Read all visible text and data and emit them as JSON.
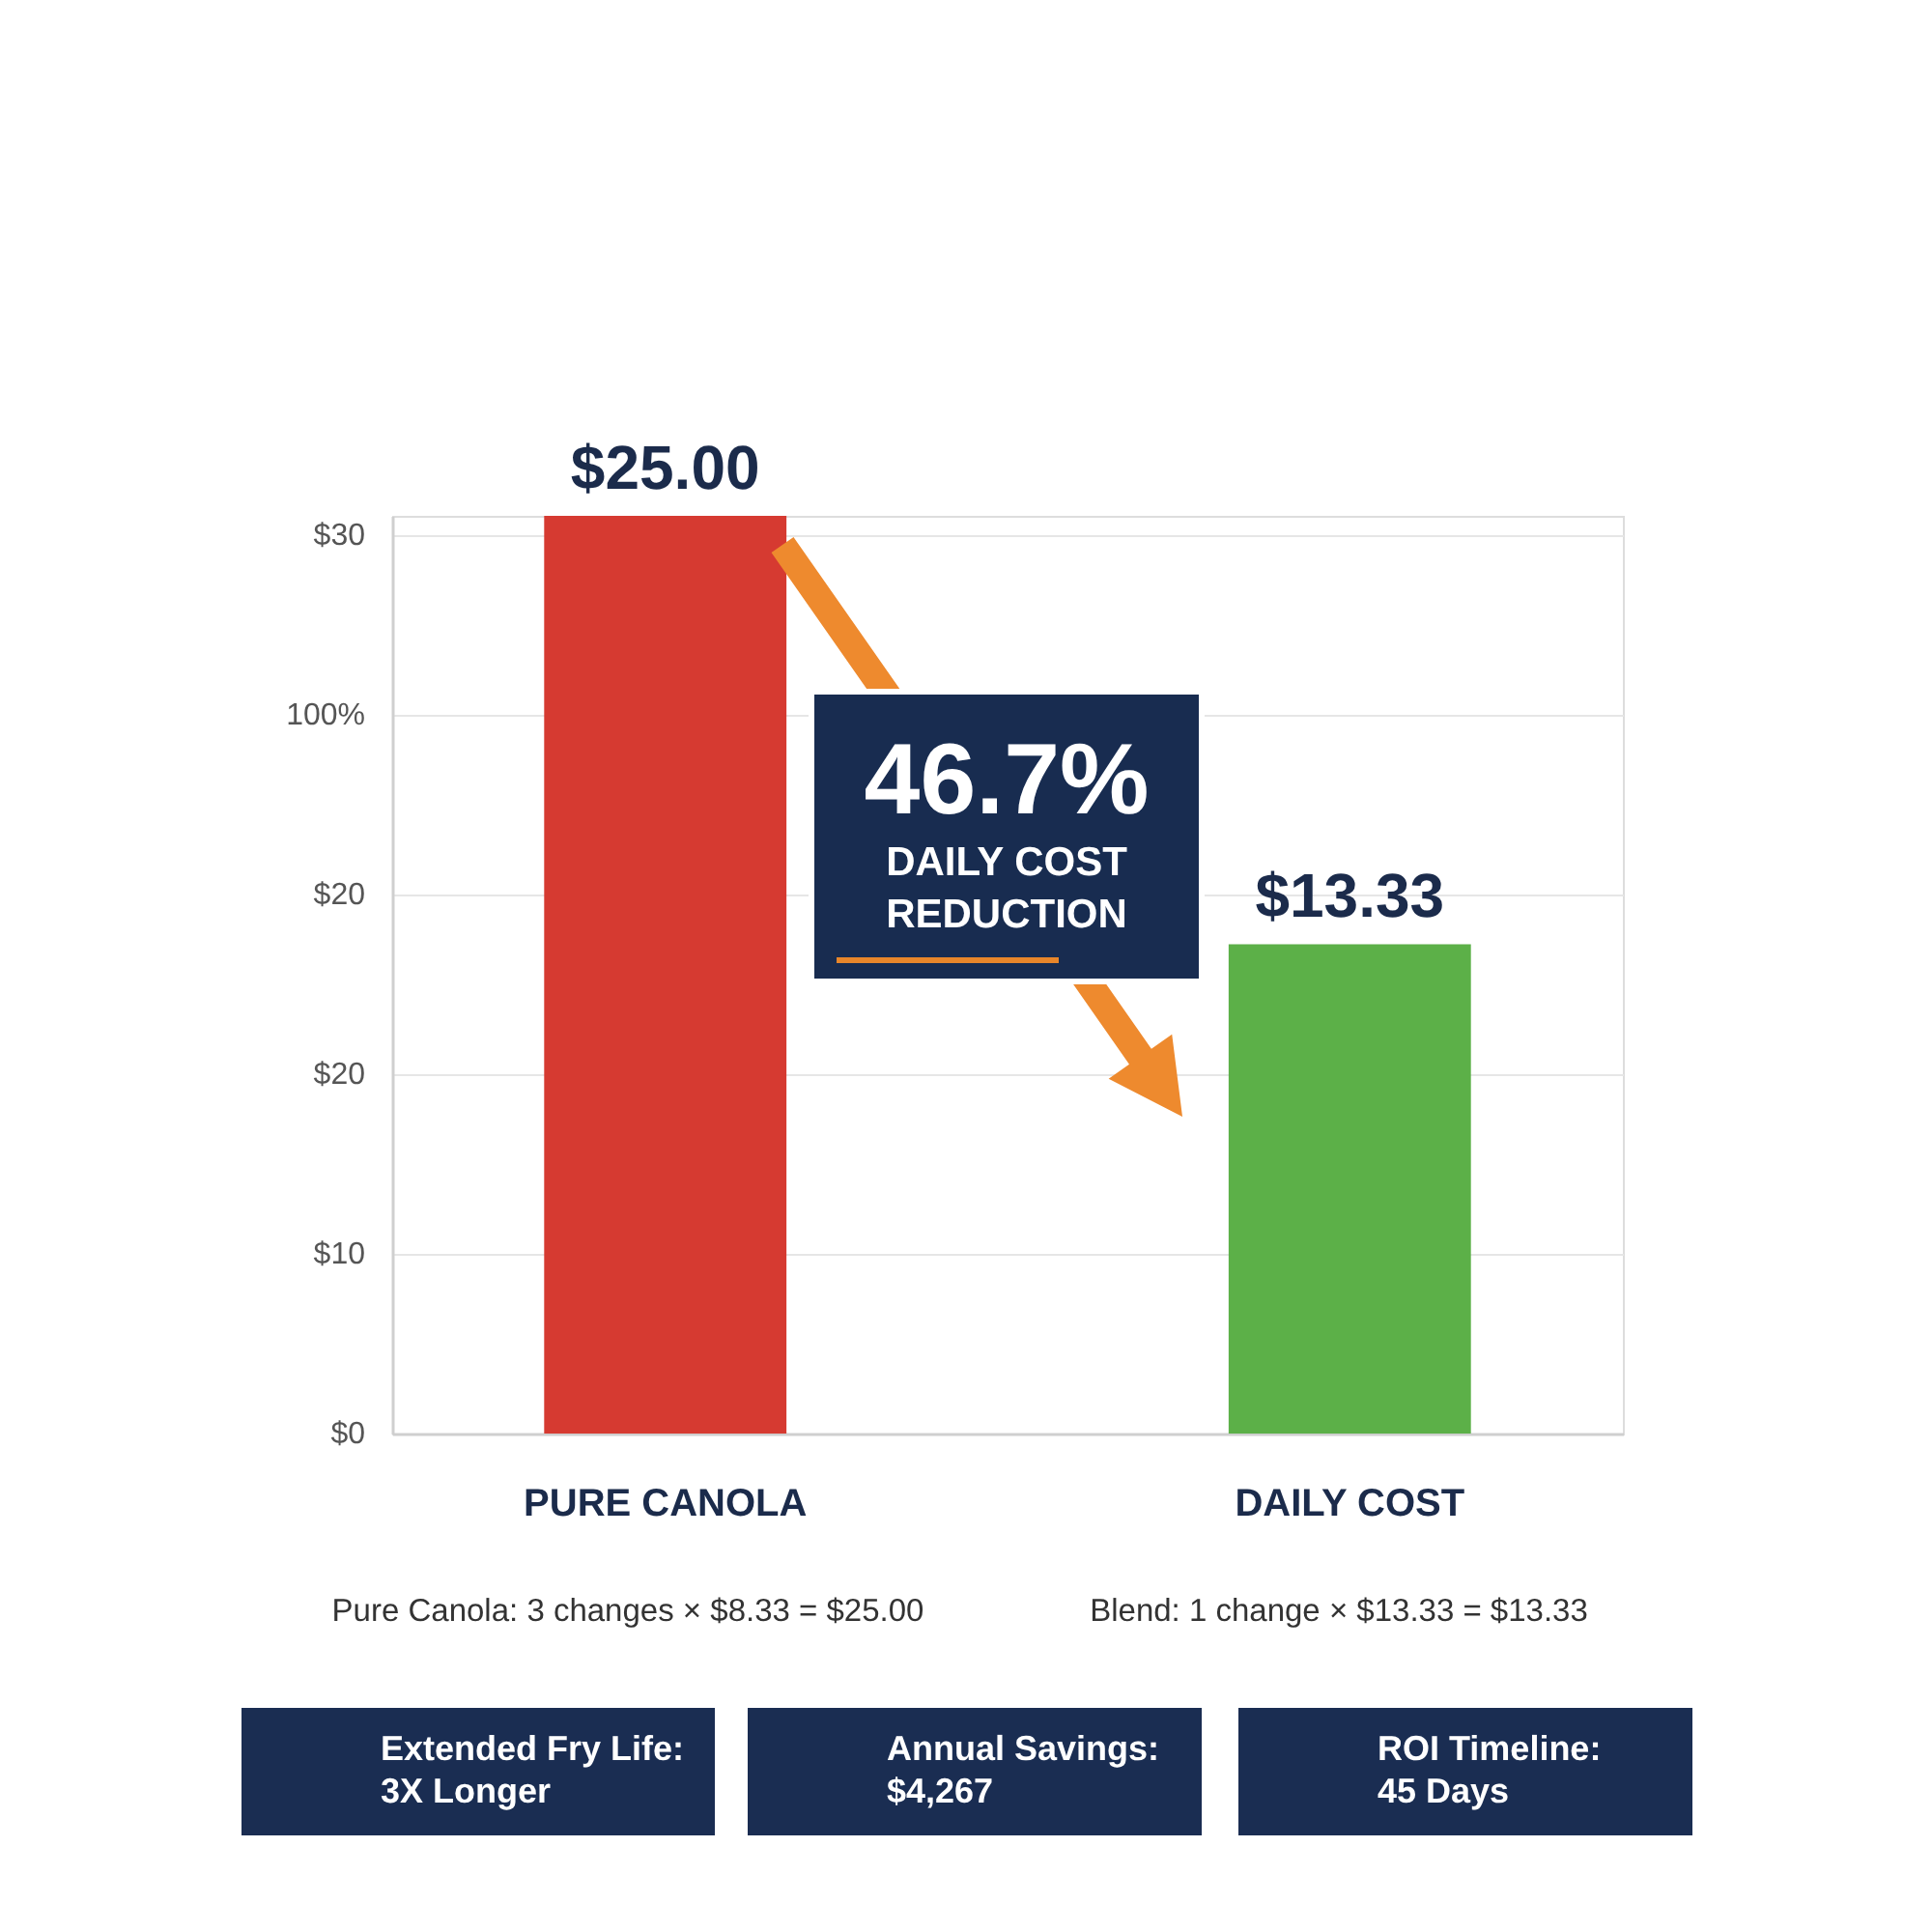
{
  "chart_data": {
    "type": "bar",
    "categories": [
      "PURE CANOLA",
      "DAILY COST"
    ],
    "values": [
      25,
      13.33
    ],
    "colors": [
      "#d63a31",
      "#5cb048"
    ],
    "value_labels": [
      "$25.00",
      "$13.33"
    ],
    "ylim": [
      0,
      25
    ],
    "grid": "y",
    "legend": false,
    "annotations": [
      "46.7%",
      "DAILY COST REDUCTION",
      "Pure Canola: 3 changes × $8.33 = $25.00",
      "Blend: 1 change × $13.33 = $13.33",
      "Extended Fry Life: 3X Longer",
      "Annual Savings: $4,267",
      "ROI Timeline: 45 Days",
      "$30",
      "100%",
      "$20",
      "$20",
      "$10",
      "$0"
    ]
  }
}
